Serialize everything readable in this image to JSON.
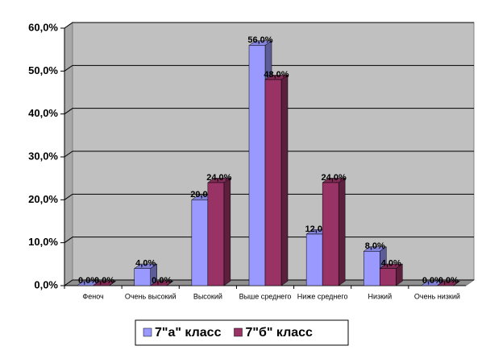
{
  "chart_data": {
    "type": "bar3d",
    "categories": [
      "Феноч",
      "Очень высокий",
      "Высокий",
      "Выше среднего",
      "Ниже среднего",
      "Низкий",
      "Очень низкий"
    ],
    "series": [
      {
        "name": "7\"а\" класс",
        "color": "#9999ff",
        "values": [
          0,
          4,
          20,
          56,
          12,
          8,
          0
        ],
        "value_labels": [
          "0,0%",
          "4,0%",
          "20,0%",
          "56,0%",
          "12,0%",
          "8,0%",
          "0,0%"
        ]
      },
      {
        "name": "7\"б\" класс",
        "color": "#993366",
        "values": [
          0,
          0,
          24,
          48,
          24,
          4,
          0
        ],
        "value_labels": [
          "0,0%",
          "0,0%",
          "24,0%",
          "48,0%",
          "24,0%",
          "4,0%",
          "0,0%"
        ]
      }
    ],
    "ylim": [
      0,
      60
    ],
    "yticks": [
      {
        "value": 0,
        "label": "0,0%"
      },
      {
        "value": 10,
        "label": "10,0%"
      },
      {
        "value": 20,
        "label": "20,0%"
      },
      {
        "value": 30,
        "label": "30,0%"
      },
      {
        "value": 40,
        "label": "40,0%"
      },
      {
        "value": 50,
        "label": "50,0%"
      },
      {
        "value": 60,
        "label": "60,0%"
      }
    ],
    "grid": true,
    "legend": "bottom"
  }
}
